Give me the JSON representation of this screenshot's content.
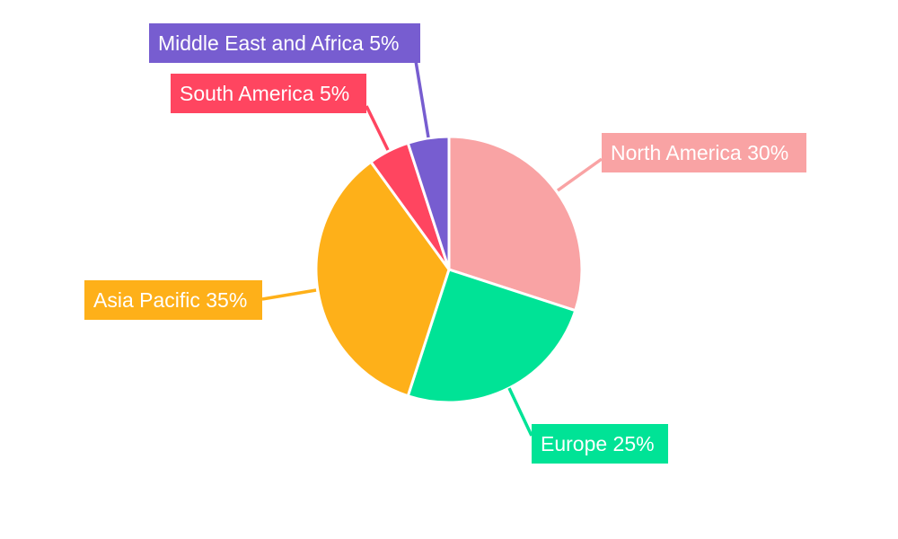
{
  "chart_data": {
    "type": "pie",
    "title": "",
    "start_angle": "12 o'clock, clockwise",
    "legend": "none (callout labels)",
    "slices": [
      {
        "label": "North America",
        "value": 30,
        "text": "North America 30%",
        "color": "#F9A3A4"
      },
      {
        "label": "Europe",
        "value": 25,
        "text": "Europe 25%",
        "color": "#00E396"
      },
      {
        "label": "Asia Pacific",
        "value": 35,
        "text": "Asia Pacific 35%",
        "color": "#FEB019"
      },
      {
        "label": "South America",
        "value": 5,
        "text": "South America 5%",
        "color": "#FF4560"
      },
      {
        "label": "Middle East and Africa",
        "value": 5,
        "text": "Middle East and Africa 5%",
        "color": "#775DD0"
      }
    ]
  }
}
